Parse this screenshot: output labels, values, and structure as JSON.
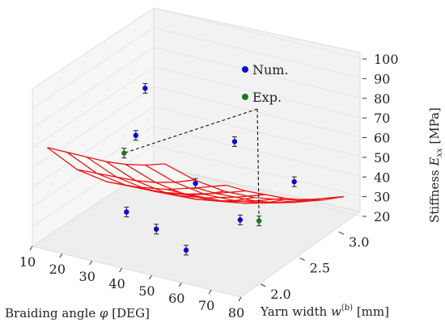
{
  "chart_data": {
    "type": "surface3d",
    "xlabel": "Braiding angle φ [DEG]",
    "ylabel": "Yarn width w(b) [mm]",
    "zlabel": "Stiffness Exx [MPa]",
    "xlabel_main": "Braiding angle ",
    "xlabel_sym": "φ",
    "xlabel_unit": " [DEG]",
    "ylabel_main": "Yarn width ",
    "ylabel_sym": "w",
    "ylabel_sup": "(b)",
    "ylabel_unit": " [mm]",
    "zlabel_main": "Stiffness ",
    "zlabel_sym": "E",
    "zlabel_sub": "xx",
    "zlabel_unit": " [MPa]",
    "x_ticks": [
      "10",
      "20",
      "30",
      "40",
      "50",
      "60",
      "70",
      "80"
    ],
    "y_ticks": [
      "2.0",
      "2.5",
      "3.0"
    ],
    "z_ticks": [
      "20",
      "30",
      "40",
      "50",
      "60",
      "70",
      "80",
      "90",
      "100"
    ],
    "xlim": [
      10,
      80
    ],
    "ylim": [
      1.75,
      3.3
    ],
    "zlim": [
      20,
      100
    ],
    "grid": true,
    "legend_position": "top-right",
    "surface_color": "#ee1111",
    "surface": {
      "x": [
        15,
        25,
        35,
        45,
        55,
        65,
        75
      ],
      "y": [
        1.75,
        2.0,
        2.25,
        2.5,
        2.75,
        3.0,
        3.25
      ],
      "z": [
        [
          72,
          64.5,
          62,
          63,
          65.5,
          70,
          75
        ],
        [
          63,
          56,
          53.5,
          54,
          56.5,
          60.5,
          65.5
        ],
        [
          54,
          47.5,
          45,
          45.5,
          48,
          52,
          57
        ],
        [
          45,
          39,
          36.5,
          37,
          39.5,
          43.5,
          48.5
        ],
        [
          37,
          31.5,
          29,
          29.5,
          32,
          36,
          41
        ],
        [
          30,
          25,
          22.5,
          23,
          25.5,
          29.5,
          34.5
        ],
        [
          24,
          19.5,
          17.5,
          18,
          20.5,
          24.5,
          29.5
        ]
      ]
    },
    "series": [
      {
        "name": "Num.",
        "color": "#0a0ad6",
        "points": [
          {
            "x": 15,
            "y": 3.0,
            "z": 69
          },
          {
            "x": 25,
            "y": 2.5,
            "z": 62
          },
          {
            "x": 35,
            "y": 2.0,
            "z": 40
          },
          {
            "x": 45,
            "y": 2.0,
            "z": 35
          },
          {
            "x": 45,
            "y": 2.5,
            "z": 45
          },
          {
            "x": 45,
            "y": 3.0,
            "z": 53
          },
          {
            "x": 55,
            "y": 2.0,
            "z": 28
          },
          {
            "x": 60,
            "y": 2.5,
            "z": 32
          },
          {
            "x": 65,
            "y": 3.0,
            "z": 40
          }
        ]
      },
      {
        "name": "Exp.",
        "color": "#1a7a1a",
        "points": [
          {
            "x": 25,
            "y": 2.35,
            "z": 57
          },
          {
            "x": 65,
            "y": 2.55,
            "z": 32
          }
        ]
      }
    ]
  }
}
